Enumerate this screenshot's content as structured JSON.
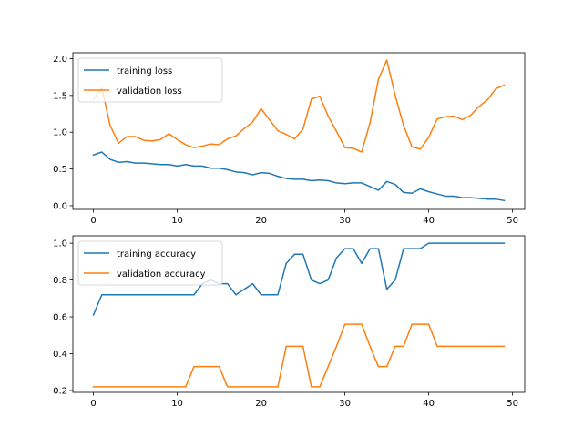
{
  "chart_data": [
    {
      "type": "line",
      "title": "",
      "xlabel": "",
      "ylabel": "",
      "xlim": [
        -2.45,
        51.45
      ],
      "ylim": [
        -0.05,
        2.08
      ],
      "xticks": [
        0,
        10,
        20,
        30,
        40,
        50
      ],
      "yticks": [
        0.0,
        0.5,
        1.0,
        1.5,
        2.0
      ],
      "ytick_labels": [
        "0.0",
        "0.5",
        "1.0",
        "1.5",
        "2.0"
      ],
      "grid": false,
      "legend_position": "top-left",
      "x": [
        0,
        1,
        2,
        3,
        4,
        5,
        6,
        7,
        8,
        9,
        10,
        11,
        12,
        13,
        14,
        15,
        16,
        17,
        18,
        19,
        20,
        21,
        22,
        23,
        24,
        25,
        26,
        27,
        28,
        29,
        30,
        31,
        32,
        33,
        34,
        35,
        36,
        37,
        38,
        39,
        40,
        41,
        42,
        43,
        44,
        45,
        46,
        47,
        48,
        49
      ],
      "series": [
        {
          "name": "training loss",
          "color": "#1f77b4",
          "values": [
            0.69,
            0.73,
            0.63,
            0.59,
            0.6,
            0.58,
            0.58,
            0.57,
            0.56,
            0.56,
            0.54,
            0.56,
            0.54,
            0.54,
            0.51,
            0.51,
            0.49,
            0.46,
            0.45,
            0.42,
            0.45,
            0.44,
            0.4,
            0.37,
            0.36,
            0.36,
            0.34,
            0.35,
            0.34,
            0.31,
            0.3,
            0.31,
            0.31,
            0.26,
            0.21,
            0.33,
            0.29,
            0.18,
            0.17,
            0.23,
            0.19,
            0.16,
            0.13,
            0.13,
            0.11,
            0.11,
            0.1,
            0.09,
            0.09,
            0.07
          ]
        },
        {
          "name": "validation loss",
          "color": "#ff7f0e",
          "values": [
            1.45,
            1.6,
            1.09,
            0.85,
            0.94,
            0.94,
            0.89,
            0.88,
            0.9,
            0.98,
            0.9,
            0.83,
            0.79,
            0.81,
            0.84,
            0.83,
            0.91,
            0.95,
            1.05,
            1.14,
            1.32,
            1.17,
            1.02,
            0.97,
            0.91,
            1.04,
            1.45,
            1.49,
            1.22,
            1.01,
            0.79,
            0.78,
            0.73,
            1.13,
            1.72,
            1.98,
            1.5,
            1.09,
            0.8,
            0.77,
            0.93,
            1.18,
            1.21,
            1.22,
            1.17,
            1.23,
            1.35,
            1.44,
            1.59,
            1.64
          ]
        }
      ]
    },
    {
      "type": "line",
      "title": "",
      "xlabel": "",
      "ylabel": "",
      "xlim": [
        -2.45,
        51.45
      ],
      "ylim": [
        0.19,
        1.04
      ],
      "xticks": [
        0,
        10,
        20,
        30,
        40,
        50
      ],
      "yticks": [
        0.2,
        0.4,
        0.6,
        0.8,
        1.0
      ],
      "ytick_labels": [
        "0.2",
        "0.4",
        "0.6",
        "0.8",
        "1.0"
      ],
      "grid": false,
      "legend_position": "top-left",
      "x": [
        0,
        1,
        2,
        3,
        4,
        5,
        6,
        7,
        8,
        9,
        10,
        11,
        12,
        13,
        14,
        15,
        16,
        17,
        18,
        19,
        20,
        21,
        22,
        23,
        24,
        25,
        26,
        27,
        28,
        29,
        30,
        31,
        32,
        33,
        34,
        35,
        36,
        37,
        38,
        39,
        40,
        41,
        42,
        43,
        44,
        45,
        46,
        47,
        48,
        49
      ],
      "series": [
        {
          "name": "training accuracy",
          "color": "#1f77b4",
          "values": [
            0.61,
            0.72,
            0.72,
            0.72,
            0.72,
            0.72,
            0.72,
            0.72,
            0.72,
            0.72,
            0.72,
            0.72,
            0.72,
            0.78,
            0.8,
            0.78,
            0.78,
            0.72,
            0.75,
            0.78,
            0.72,
            0.72,
            0.72,
            0.89,
            0.94,
            0.94,
            0.8,
            0.78,
            0.8,
            0.92,
            0.97,
            0.97,
            0.89,
            0.97,
            0.97,
            0.75,
            0.8,
            0.97,
            0.97,
            0.97,
            1.0,
            1.0,
            1.0,
            1.0,
            1.0,
            1.0,
            1.0,
            1.0,
            1.0,
            1.0
          ]
        },
        {
          "name": "validation accuracy",
          "color": "#ff7f0e",
          "values": [
            0.22,
            0.22,
            0.22,
            0.22,
            0.22,
            0.22,
            0.22,
            0.22,
            0.22,
            0.22,
            0.22,
            0.22,
            0.33,
            0.33,
            0.33,
            0.33,
            0.22,
            0.22,
            0.22,
            0.22,
            0.22,
            0.22,
            0.22,
            0.44,
            0.44,
            0.44,
            0.22,
            0.22,
            0.33,
            0.44,
            0.56,
            0.56,
            0.56,
            0.44,
            0.33,
            0.33,
            0.44,
            0.44,
            0.56,
            0.56,
            0.56,
            0.44,
            0.44,
            0.44,
            0.44,
            0.44,
            0.44,
            0.44,
            0.44,
            0.44
          ]
        }
      ]
    }
  ]
}
